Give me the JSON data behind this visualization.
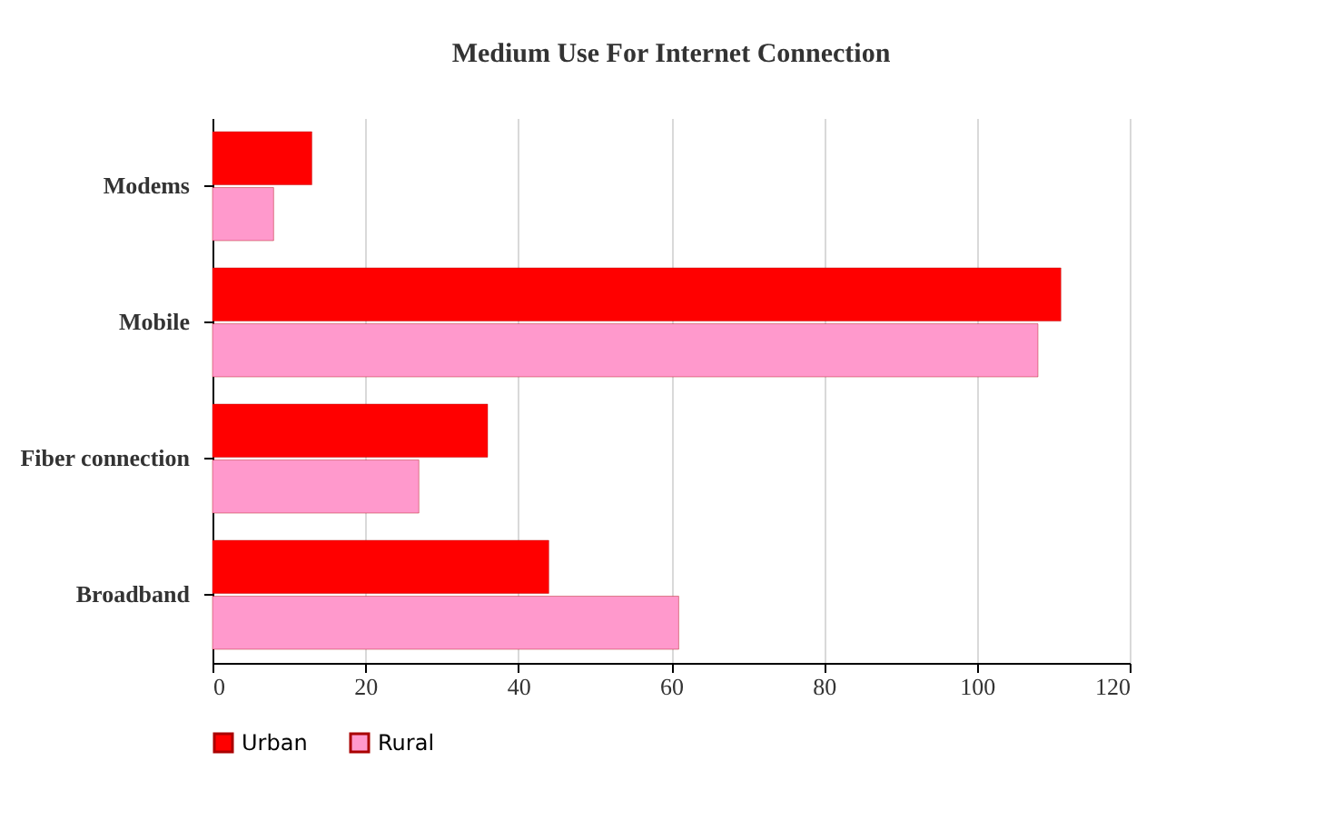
{
  "chart_data": {
    "type": "bar",
    "orientation": "horizontal",
    "title": "Medium  Use For Internet Connection",
    "categories": [
      "Modems",
      "Mobile",
      "Fiber connection",
      "Broadband"
    ],
    "series": [
      {
        "name": "Urban",
        "color": "#ff0000",
        "values": [
          13,
          111,
          36,
          44
        ]
      },
      {
        "name": "Rural",
        "color": "#ff99cc",
        "values": [
          8,
          108,
          27,
          61
        ]
      }
    ],
    "xlim": [
      0,
      120
    ],
    "xticks": [
      0,
      20,
      40,
      60,
      80,
      100,
      120
    ],
    "grid": "x",
    "legend": "bottom"
  }
}
